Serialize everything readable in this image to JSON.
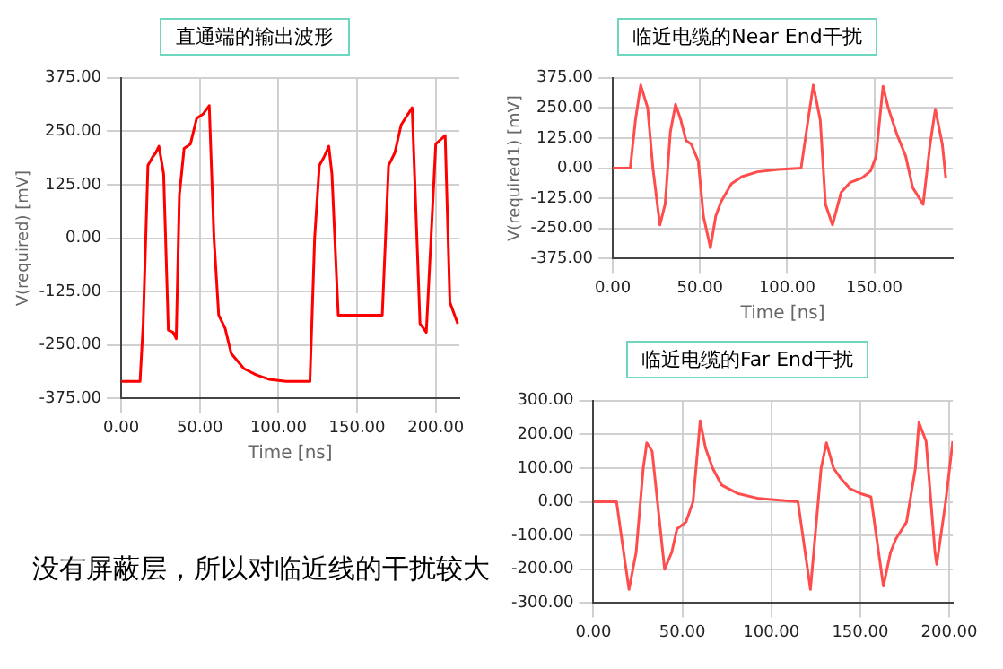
{
  "chart_data": [
    {
      "type": "line",
      "title": "直通端的输出波形",
      "xlabel": "Time [ns]",
      "ylabel": "V(required) [mV]",
      "grid": true,
      "legend": false,
      "marker": "none",
      "line_style": "solid",
      "annotations": [
        "没有屏蔽层，所以对临近线的干扰较大"
      ],
      "xlim": [
        0,
        215
      ],
      "xticks": [
        {
          "value": 0,
          "label": "0.00"
        },
        {
          "value": 50,
          "label": "50.00"
        },
        {
          "value": 100,
          "label": "100.00"
        },
        {
          "value": 150,
          "label": "150.00"
        },
        {
          "value": 200,
          "label": "200.00"
        }
      ],
      "ylim": [
        -375,
        375
      ],
      "yticks": [
        {
          "value": -375,
          "label": "-375.00"
        },
        {
          "value": -250,
          "label": "-250.00"
        },
        {
          "value": -125,
          "label": "-125.00"
        },
        {
          "value": 0,
          "label": "0.00"
        },
        {
          "value": 125,
          "label": "125.00"
        },
        {
          "value": 250,
          "label": "250.00"
        },
        {
          "value": 375,
          "label": "375.00"
        }
      ],
      "series": [
        {
          "color": "#ff0000",
          "x": [
            0,
            12,
            14,
            17,
            20,
            22,
            24,
            27,
            30,
            33,
            35,
            37,
            40,
            44,
            48,
            52,
            56,
            59,
            62,
            66,
            70,
            78,
            86,
            94,
            105,
            120,
            123,
            126,
            129,
            132,
            134,
            138,
            166,
            170,
            174,
            178,
            185,
            190,
            194,
            197,
            200,
            206,
            209,
            214
          ],
          "values": [
            -335,
            -335,
            -200,
            170,
            190,
            200,
            215,
            150,
            -215,
            -220,
            -235,
            100,
            210,
            220,
            280,
            290,
            310,
            0,
            -180,
            -210,
            -270,
            -305,
            -320,
            -330,
            -335,
            -335,
            0,
            170,
            190,
            215,
            150,
            -180,
            -180,
            170,
            200,
            265,
            305,
            -200,
            -220,
            0,
            220,
            240,
            -150,
            -200
          ]
        }
      ]
    },
    {
      "type": "line",
      "title": "临近电缆的Near End干扰",
      "xlabel": "Time [ns]",
      "ylabel": "V(required1) [mV]",
      "grid": true,
      "legend": false,
      "marker": "none",
      "line_style": "solid",
      "xlim": [
        0,
        195
      ],
      "xticks": [
        {
          "value": 0,
          "label": "0.00"
        },
        {
          "value": 50,
          "label": "50.00"
        },
        {
          "value": 100,
          "label": "100.00"
        },
        {
          "value": 150,
          "label": "150.00"
        }
      ],
      "ylim": [
        -375,
        375
      ],
      "yticks": [
        {
          "value": -375,
          "label": "-375.00"
        },
        {
          "value": -250,
          "label": "-250.00"
        },
        {
          "value": -125,
          "label": "-125.00"
        },
        {
          "value": 0,
          "label": "0.00"
        },
        {
          "value": 125,
          "label": "125.00"
        },
        {
          "value": 250,
          "label": "250.00"
        },
        {
          "value": 375,
          "label": "375.00"
        }
      ],
      "series": [
        {
          "color": "#ff4d4d",
          "x": [
            0,
            10,
            13,
            16,
            20,
            23,
            27,
            30,
            33,
            36,
            39,
            42,
            45,
            49,
            52,
            56,
            59,
            62,
            68,
            74,
            83,
            95,
            108,
            112,
            115,
            119,
            122,
            126,
            131,
            136,
            143,
            148,
            151,
            155,
            158,
            163,
            168,
            172,
            178,
            182,
            185,
            189,
            191
          ],
          "values": [
            0,
            0,
            200,
            345,
            250,
            0,
            -235,
            -150,
            150,
            265,
            200,
            115,
            100,
            30,
            -200,
            -330,
            -200,
            -140,
            -65,
            -35,
            -15,
            -5,
            0,
            200,
            345,
            200,
            -150,
            -235,
            -100,
            -60,
            -40,
            -10,
            50,
            340,
            250,
            140,
            50,
            -80,
            -150,
            100,
            245,
            100,
            -40
          ]
        }
      ]
    },
    {
      "type": "line",
      "title": "临近电缆的Far End干扰",
      "grid": true,
      "legend": false,
      "marker": "none",
      "line_style": "solid",
      "xlim": [
        0,
        202
      ],
      "xticks": [
        {
          "value": 0,
          "label": "0.00"
        },
        {
          "value": 50,
          "label": "50.00"
        },
        {
          "value": 100,
          "label": "100.00"
        },
        {
          "value": 150,
          "label": "150.00"
        },
        {
          "value": 200,
          "label": "200.00"
        }
      ],
      "ylim": [
        -300,
        300
      ],
      "yticks": [
        {
          "value": -300,
          "label": "-300.00"
        },
        {
          "value": -200,
          "label": "-200.00"
        },
        {
          "value": -100,
          "label": "-100.00"
        },
        {
          "value": 0,
          "label": "0.00"
        },
        {
          "value": 100,
          "label": "100.00"
        },
        {
          "value": 200,
          "label": "200.00"
        },
        {
          "value": 300,
          "label": "300.00"
        }
      ],
      "series": [
        {
          "color": "#ff4d4d",
          "x": [
            0,
            13,
            17,
            20,
            24,
            28,
            30,
            33,
            36,
            40,
            44,
            47,
            52,
            56,
            60,
            63,
            67,
            72,
            81,
            93,
            115,
            122,
            128,
            131,
            135,
            139,
            144,
            150,
            156,
            159,
            163,
            167,
            170,
            176,
            181,
            183,
            187,
            192,
            193,
            198,
            202
          ],
          "values": [
            0,
            0,
            -150,
            -260,
            -150,
            100,
            175,
            150,
            0,
            -200,
            -150,
            -80,
            -60,
            0,
            240,
            160,
            100,
            50,
            25,
            10,
            0,
            -260,
            100,
            175,
            100,
            70,
            40,
            25,
            15,
            -100,
            -250,
            -150,
            -110,
            -60,
            100,
            235,
            180,
            -150,
            -185,
            0,
            180
          ]
        }
      ]
    }
  ]
}
